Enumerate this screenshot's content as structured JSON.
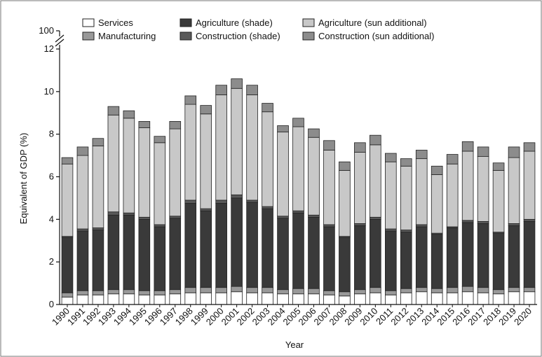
{
  "chart_data": {
    "type": "bar",
    "stacked": true,
    "xlabel": "Year",
    "ylabel": "Equivalent of GDP (%)",
    "ylim": [
      0,
      12
    ],
    "y_ticks": [
      0,
      2,
      4,
      6,
      8,
      10,
      12
    ],
    "y_break_label": "100",
    "grid": false,
    "legend_position": "top",
    "categories": [
      "1990",
      "1991",
      "1992",
      "1993",
      "1994",
      "1995",
      "1996",
      "1997",
      "1998",
      "1999",
      "2000",
      "2001",
      "2002",
      "2003",
      "2004",
      "2005",
      "2006",
      "2007",
      "2008",
      "2009",
      "2010",
      "2011",
      "2012",
      "2013",
      "2014",
      "2015",
      "2016",
      "2017",
      "2018",
      "2019",
      "2020"
    ],
    "series": [
      {
        "name": "Services",
        "color": "#ffffff",
        "values": [
          0.35,
          0.45,
          0.45,
          0.5,
          0.5,
          0.45,
          0.45,
          0.5,
          0.55,
          0.55,
          0.55,
          0.6,
          0.55,
          0.55,
          0.5,
          0.5,
          0.5,
          0.45,
          0.4,
          0.5,
          0.55,
          0.45,
          0.55,
          0.6,
          0.55,
          0.55,
          0.6,
          0.55,
          0.5,
          0.6,
          0.6
        ]
      },
      {
        "name": "Manufacturing",
        "color": "#999999",
        "values": [
          0.2,
          0.2,
          0.2,
          0.2,
          0.2,
          0.2,
          0.2,
          0.2,
          0.25,
          0.25,
          0.25,
          0.25,
          0.25,
          0.25,
          0.2,
          0.25,
          0.25,
          0.2,
          0.2,
          0.2,
          0.25,
          0.2,
          0.2,
          0.2,
          0.2,
          0.25,
          0.25,
          0.25,
          0.2,
          0.2,
          0.2
        ]
      },
      {
        "name": "Agriculture (shade)",
        "color": "#3a3a3a",
        "values": [
          2.6,
          2.8,
          2.85,
          3.5,
          3.5,
          3.35,
          3.0,
          3.35,
          3.95,
          3.6,
          3.95,
          4.15,
          4.0,
          3.7,
          3.35,
          3.55,
          3.35,
          3.0,
          2.55,
          3.0,
          3.2,
          2.8,
          2.65,
          2.85,
          2.55,
          2.8,
          3.0,
          3.0,
          2.65,
          2.9,
          3.1
        ]
      },
      {
        "name": "Construction (shade)",
        "color": "#5a5a5a",
        "values": [
          0.05,
          0.1,
          0.1,
          0.15,
          0.1,
          0.1,
          0.1,
          0.1,
          0.15,
          0.1,
          0.15,
          0.15,
          0.1,
          0.1,
          0.1,
          0.1,
          0.1,
          0.1,
          0.05,
          0.1,
          0.1,
          0.1,
          0.1,
          0.1,
          0.05,
          0.05,
          0.1,
          0.1,
          0.05,
          0.1,
          0.1
        ]
      },
      {
        "name": "Agriculture (sun additional)",
        "color": "#c8c8c8",
        "values": [
          3.4,
          3.45,
          3.85,
          4.55,
          4.45,
          4.2,
          3.85,
          4.1,
          4.5,
          4.45,
          4.95,
          5.0,
          4.95,
          4.45,
          3.95,
          3.95,
          3.65,
          3.5,
          3.1,
          3.35,
          3.4,
          3.15,
          3.0,
          3.1,
          2.75,
          2.95,
          3.25,
          3.05,
          2.9,
          3.1,
          3.2
        ]
      },
      {
        "name": "Construction (sun additional)",
        "color": "#8c8c8c",
        "values": [
          0.3,
          0.4,
          0.35,
          0.4,
          0.35,
          0.3,
          0.3,
          0.35,
          0.4,
          0.4,
          0.45,
          0.45,
          0.45,
          0.4,
          0.3,
          0.4,
          0.4,
          0.45,
          0.4,
          0.45,
          0.45,
          0.4,
          0.35,
          0.4,
          0.4,
          0.45,
          0.45,
          0.45,
          0.35,
          0.5,
          0.4
        ]
      }
    ]
  }
}
